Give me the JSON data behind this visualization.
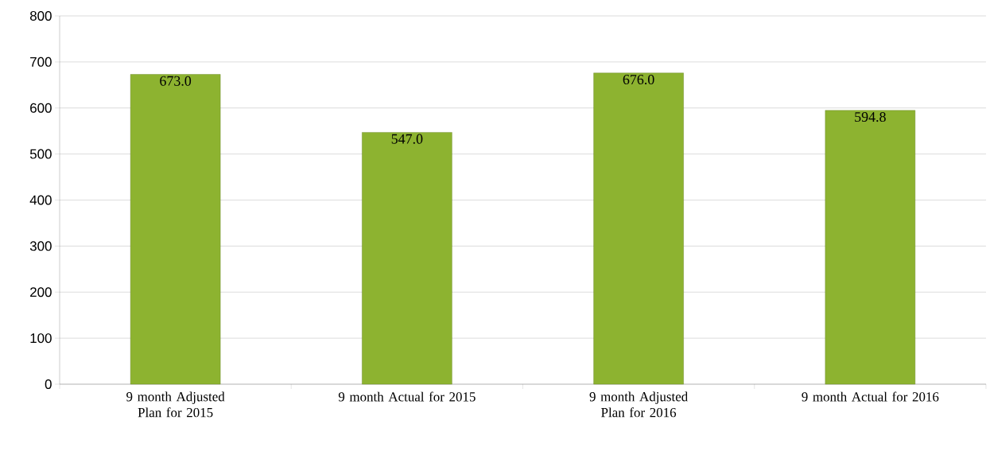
{
  "chart_data": {
    "type": "bar",
    "categories": [
      "9 month Adjusted Plan for 2015",
      "9 month Actual for 2015",
      "9 month Adjusted Plan for 2016",
      "9 month Actual for 2016"
    ],
    "values": [
      673.0,
      547.0,
      676.0,
      594.8
    ],
    "value_labels": [
      "673.0",
      "547.0",
      "676.0",
      "594.8"
    ],
    "color": "#8db330",
    "ylim": [
      0,
      800
    ],
    "yticks": [
      0,
      100,
      200,
      300,
      400,
      500,
      600,
      700,
      800
    ],
    "grid": "y"
  }
}
